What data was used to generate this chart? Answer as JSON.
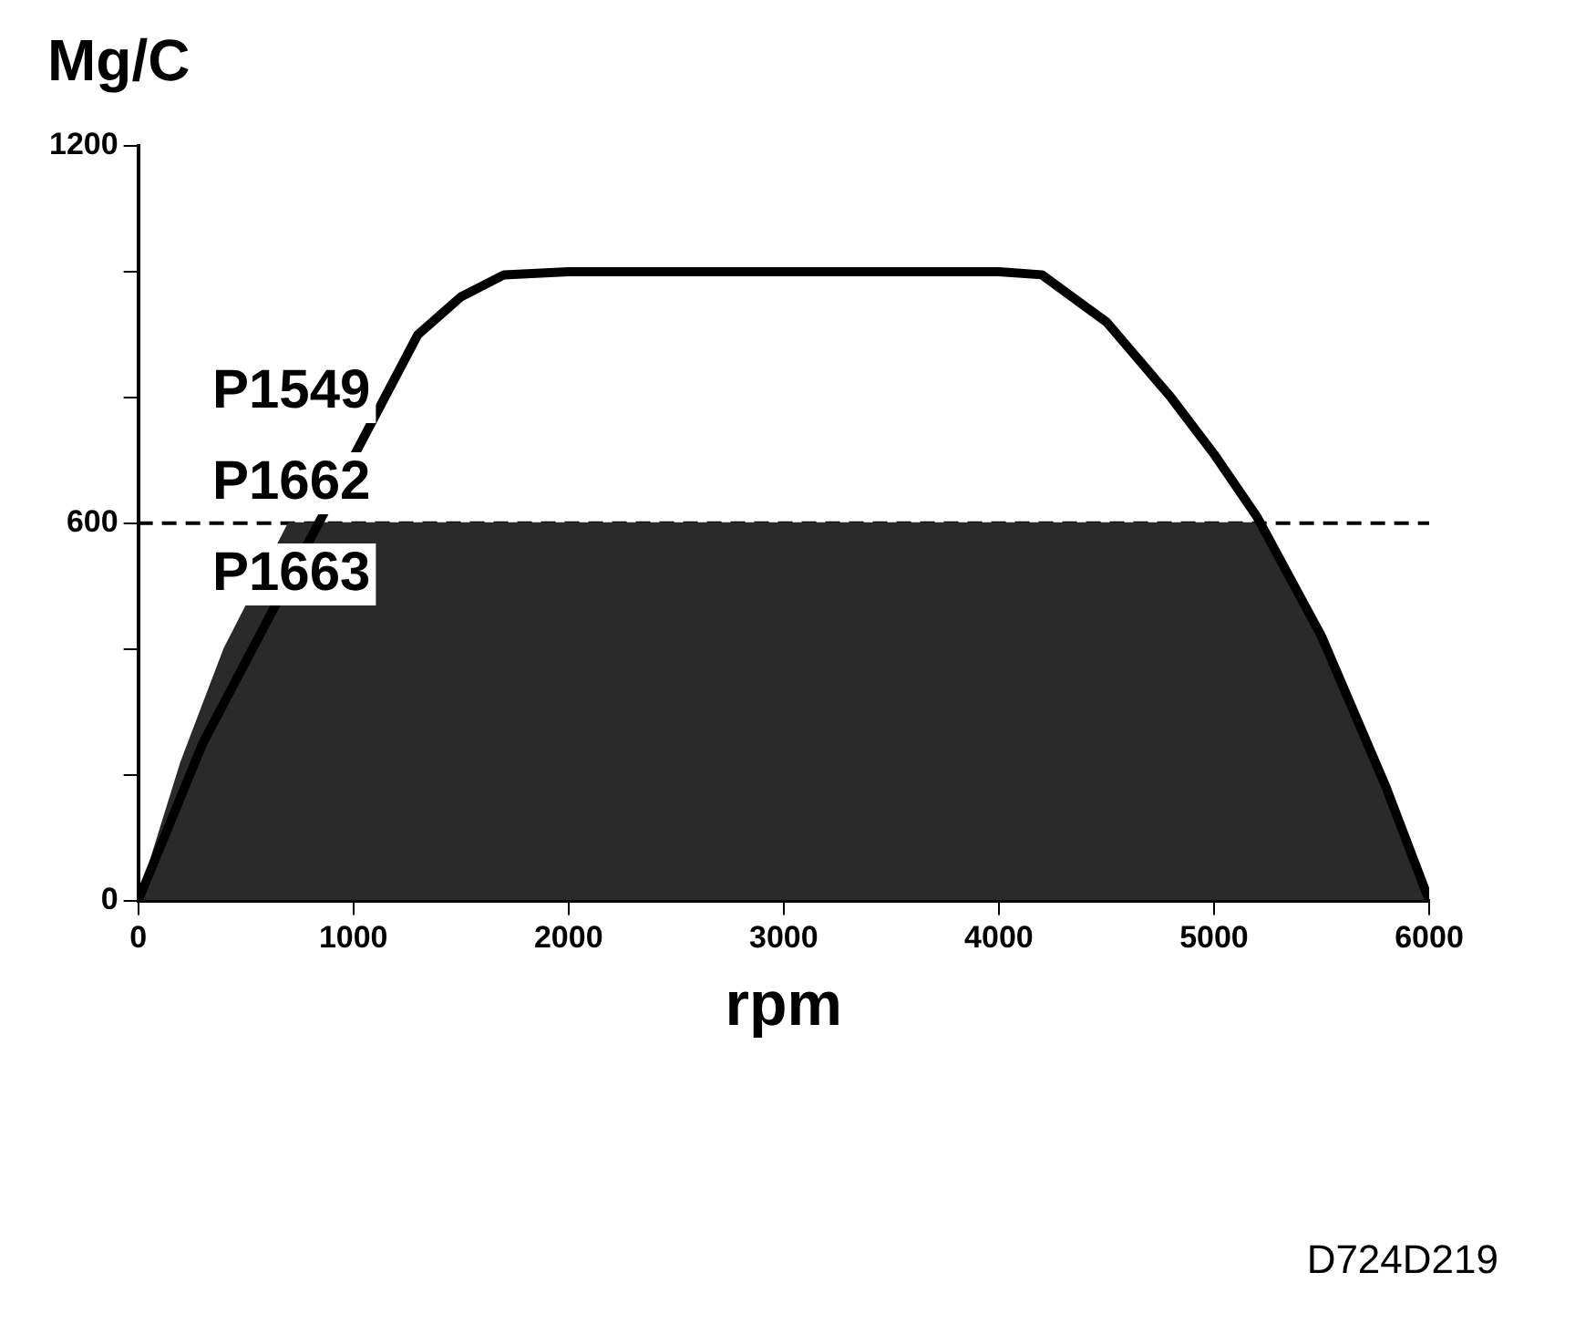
{
  "chart_data": {
    "type": "line",
    "ylabel": "Mg/C",
    "xlabel": "rpm",
    "xlim": [
      0,
      6000
    ],
    "xticks": [
      0,
      1000,
      2000,
      3000,
      4000,
      5000,
      6000
    ],
    "ylim": [
      0,
      1200
    ],
    "yticks": [
      0,
      {
        "value": 200,
        "label": null
      },
      {
        "value": 400,
        "label": null
      },
      600,
      {
        "value": 800,
        "label": null
      },
      {
        "value": 1000,
        "label": null
      },
      1200
    ],
    "grid": false,
    "legend": false,
    "marker": "none",
    "series": [
      {
        "type": "area",
        "color": "#2a2a2a",
        "x": [
          0,
          200,
          400,
          700,
          5200,
          5500,
          5800,
          6000
        ],
        "values": [
          0,
          220,
          400,
          600,
          600,
          420,
          180,
          0
        ]
      },
      {
        "type": "line",
        "color": "#000000",
        "x": [
          0,
          300,
          600,
          900,
          1300,
          1500,
          1700,
          2000,
          4000,
          4200,
          4500,
          4800,
          5000,
          5200,
          5500,
          5800,
          6000
        ],
        "values": [
          0,
          250,
          null,
          null,
          900,
          960,
          995,
          1000,
          1000,
          995,
          920,
          800,
          710,
          610,
          420,
          180,
          0
        ]
      }
    ],
    "ref_lines": [
      {
        "axis": "y",
        "value": 600,
        "line_style": "dashed",
        "color": "#000000"
      }
    ],
    "annotations": [
      "P1549",
      "P1662",
      "P1663",
      "D724D219"
    ]
  }
}
